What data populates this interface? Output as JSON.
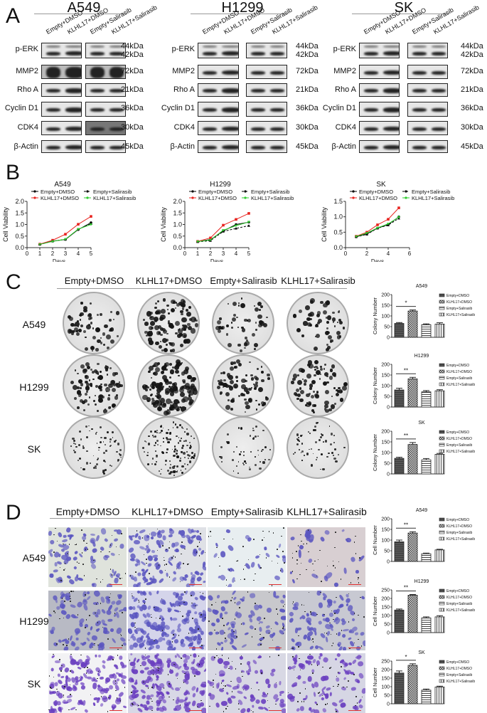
{
  "panels": {
    "A": {
      "letter": "A",
      "conditions": [
        "Empty+DMSO",
        "KLHL17+DMSO",
        "Empty+Salirasib",
        "KLHL17+Salirasib"
      ],
      "cell_lines": [
        {
          "name": "A549"
        },
        {
          "name": "H1299"
        },
        {
          "name": "SK"
        }
      ],
      "proteins": [
        {
          "label": "p-ERK",
          "kda": "44kDa",
          "kda2": "42kDa"
        },
        {
          "label": "MMP2",
          "kda": "72kDa"
        },
        {
          "label": "Rho A",
          "kda": "21kDa"
        },
        {
          "label": "Cyclin D1",
          "kda": "36kDa"
        },
        {
          "label": "CDK4",
          "kda": "30kDa"
        },
        {
          "label": "β-Actin",
          "kda": "45kDa"
        }
      ]
    },
    "B": {
      "letter": "B"
    },
    "C": {
      "letter": "C",
      "columns": [
        "Empty+DMSO",
        "KLHL17+DMSO",
        "Empty+Salirasib",
        "KLHL17+Salirasib"
      ],
      "rows": [
        "A549",
        "H1299",
        "SK"
      ]
    },
    "D": {
      "letter": "D",
      "columns": [
        "Empty+DMSO",
        "KLHL17+DMSO",
        "Empty+Salirasib",
        "KLHL17+Salirasib"
      ],
      "rows": [
        "A549",
        "H1299",
        "SK"
      ]
    }
  },
  "colors": {
    "empty_dmso": "#000000",
    "klhl17_dmso": "#e8231f",
    "empty_salirasib": "#000000",
    "klhl17_salirasib": "#2fcc2f",
    "stain_purple": "#6a5acd"
  },
  "chart_data": [
    {
      "id": "B-A549",
      "type": "line",
      "title": "A549",
      "xlabel": "Days",
      "ylabel": "Cell Viability",
      "xlim": [
        0,
        5
      ],
      "ylim": [
        0,
        2.0
      ],
      "xticks": [
        0,
        1,
        2,
        3,
        4,
        5
      ],
      "yticks": [
        0.0,
        0.5,
        1.0,
        1.5,
        2.0
      ],
      "x": [
        1,
        2,
        3,
        4,
        5
      ],
      "series": [
        {
          "name": "Empty+DMSO",
          "values": [
            0.14,
            0.28,
            0.35,
            0.78,
            1.08
          ]
        },
        {
          "name": "KLHL17+DMSO",
          "values": [
            0.15,
            0.32,
            0.58,
            1.01,
            1.35
          ]
        },
        {
          "name": "Empty+Salirasib",
          "values": [
            0.14,
            0.28,
            0.36,
            0.79,
            1.03
          ]
        },
        {
          "name": "KLHL17+Salirasib",
          "values": [
            0.14,
            0.27,
            0.36,
            0.8,
            1.0
          ]
        }
      ]
    },
    {
      "id": "B-H1299",
      "type": "line",
      "title": "H1299",
      "xlabel": "Days",
      "ylabel": "Cell Viability",
      "xlim": [
        0,
        5
      ],
      "ylim": [
        0,
        2.0
      ],
      "xticks": [
        0,
        1,
        2,
        3,
        4,
        5
      ],
      "yticks": [
        0.0,
        0.5,
        1.0,
        1.5,
        2.0
      ],
      "x": [
        1,
        2,
        3,
        4,
        5
      ],
      "series": [
        {
          "name": "Empty+DMSO",
          "values": [
            0.26,
            0.35,
            0.72,
            1.0,
            1.1
          ]
        },
        {
          "name": "KLHL17+DMSO",
          "values": [
            0.27,
            0.42,
            0.97,
            1.22,
            1.48
          ]
        },
        {
          "name": "Empty+Salirasib",
          "values": [
            0.25,
            0.3,
            0.7,
            0.83,
            0.95
          ]
        },
        {
          "name": "KLHL17+Salirasib",
          "values": [
            0.26,
            0.33,
            0.75,
            0.95,
            1.11
          ]
        }
      ]
    },
    {
      "id": "B-SK",
      "type": "line",
      "title": "SK",
      "xlabel": "Days",
      "ylabel": "Cell Viability",
      "xlim": [
        0,
        6
      ],
      "ylim": [
        0,
        1.5
      ],
      "xticks": [
        0,
        2,
        4,
        6
      ],
      "yticks": [
        0.0,
        0.5,
        1.0,
        1.5
      ],
      "x": [
        1,
        2,
        3,
        4,
        5
      ],
      "series": [
        {
          "name": "Empty+DMSO",
          "values": [
            0.35,
            0.45,
            0.63,
            0.75,
            1.0
          ]
        },
        {
          "name": "KLHL17+DMSO",
          "values": [
            0.37,
            0.5,
            0.74,
            0.92,
            1.29
          ]
        },
        {
          "name": "Empty+Salirasib",
          "values": [
            0.35,
            0.43,
            0.63,
            0.73,
            0.95
          ]
        },
        {
          "name": "KLHL17+Salirasib",
          "values": [
            0.36,
            0.47,
            0.64,
            0.77,
            0.99
          ]
        }
      ]
    },
    {
      "id": "C-A549",
      "type": "bar",
      "title": "A549",
      "ylabel": "Colony Number",
      "ylim": [
        0,
        200
      ],
      "yticks": [
        0,
        50,
        100,
        150,
        200
      ],
      "categories": [
        "Empty+DMSO",
        "KLHL17+DMSO",
        "Empty+Salirasib",
        "KLHL17+Salirasib"
      ],
      "values": [
        65,
        123,
        59,
        62
      ],
      "errors": [
        4,
        5,
        4,
        6
      ],
      "significance": {
        "between": [
          0,
          1
        ],
        "label": "*"
      }
    },
    {
      "id": "C-H1299",
      "type": "bar",
      "title": "H1299",
      "ylabel": "Colony Number",
      "ylim": [
        0,
        200
      ],
      "yticks": [
        0,
        50,
        100,
        150,
        200
      ],
      "categories": [
        "Empty+DMSO",
        "KLHL17+DMSO",
        "Empty+Salirasib",
        "KLHL17+Salirasib"
      ],
      "values": [
        80,
        132,
        71,
        76
      ],
      "errors": [
        8,
        7,
        6,
        5
      ],
      "significance": {
        "between": [
          0,
          1
        ],
        "label": "**"
      }
    },
    {
      "id": "C-SK",
      "type": "bar",
      "title": "SK",
      "ylabel": "Colony Number",
      "ylim": [
        0,
        200
      ],
      "yticks": [
        0,
        50,
        100,
        150,
        200
      ],
      "categories": [
        "Empty+DMSO",
        "KLHL17+DMSO",
        "Empty+Salirasib",
        "KLHL17+Salirasib"
      ],
      "values": [
        73,
        138,
        66,
        92
      ],
      "errors": [
        5,
        9,
        6,
        4
      ],
      "significance": {
        "between": [
          0,
          1
        ],
        "label": "**"
      }
    },
    {
      "id": "D-A549",
      "type": "bar",
      "title": "A549",
      "ylabel": "Cell Number",
      "ylim": [
        0,
        200
      ],
      "yticks": [
        0,
        50,
        100,
        150,
        200
      ],
      "categories": [
        "Empty+DMSO",
        "KLHL17+DMSO",
        "Empty+Salirasib",
        "KLHL17+Salirasib"
      ],
      "values": [
        92,
        133,
        36,
        54
      ],
      "errors": [
        8,
        6,
        3,
        3
      ],
      "significance": {
        "between": [
          0,
          1
        ],
        "label": "**"
      }
    },
    {
      "id": "D-H1299",
      "type": "bar",
      "title": "H1299",
      "ylabel": "Cell Number",
      "ylim": [
        0,
        250
      ],
      "yticks": [
        0,
        50,
        100,
        150,
        200,
        250
      ],
      "categories": [
        "Empty+DMSO",
        "KLHL17+DMSO",
        "Empty+Salirasib",
        "KLHL17+Salirasib"
      ],
      "values": [
        132,
        219,
        86,
        92
      ],
      "errors": [
        6,
        4,
        6,
        7
      ],
      "significance": {
        "between": [
          0,
          1
        ],
        "label": "**"
      }
    },
    {
      "id": "D-SK",
      "type": "bar",
      "title": "SK",
      "ylabel": "Cell Number",
      "ylim": [
        0,
        250
      ],
      "yticks": [
        0,
        50,
        100,
        150,
        200,
        250
      ],
      "categories": [
        "Empty+DMSO",
        "KLHL17+DMSO",
        "Empty+Salirasib",
        "KLHL17+Salirasib"
      ],
      "values": [
        180,
        225,
        80,
        98
      ],
      "errors": [
        12,
        9,
        6,
        5
      ],
      "significance": {
        "between": [
          0,
          1
        ],
        "label": "*"
      }
    }
  ]
}
